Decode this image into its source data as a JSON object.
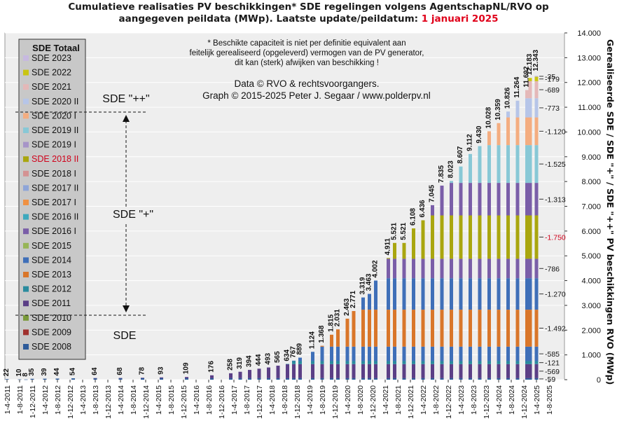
{
  "header": {
    "title_line1": "Cumulatieve realisaties PV beschikkingen*  SDE regelingen volgens AgentschapNL/RVO  op",
    "title_line2": "aangegeven peildata (MWp). Laatste update/peildatum: ",
    "title_date": "1 januari 2025"
  },
  "notes": {
    "disclaimer": [
      "* Beschikte capaciteit is niet per definitie equivalent aan",
      "feitelijk gerealiseerd (opgeleverd) vermogen van de PV generator,",
      "dit kan (sterk) afwijken van beschikking !"
    ],
    "data_credit": "Data © RVO & rechtsvoorgangers.",
    "graph_credit": "Graph  © 2015-2025  Peter J. Segaar / www.polderpv.nl"
  },
  "annotations": {
    "sde_pp": "SDE \"++\"",
    "sde_p": "SDE \"+\"",
    "sde": "SDE"
  },
  "colors": {
    "plot_bg": "#eeeeee",
    "legend_bg": "#c8c8c8",
    "highlight_red": "#d0021b"
  },
  "chart_data": {
    "type": "bar",
    "stacked": true,
    "ylabel_right": "Gerealiseerde SDE / SDE \"+\" / SDE \"++\" PV beschikkingen RVO (MWp)",
    "ylim": [
      0,
      14000
    ],
    "y_ticks": [
      "0",
      "1.000",
      "2.000",
      "3.000",
      "4.000",
      "5.000",
      "6.000",
      "7.000",
      "8.000",
      "9.000",
      "10.000",
      "11.000",
      "12.000",
      "13.000",
      "14.000"
    ],
    "grid": true,
    "legend_position": "left",
    "legend_title": "SDE Totaal",
    "x_tick_labels": [
      "1-4-2011",
      "1-8-2011",
      "1-12-2011",
      "1-4-2012",
      "1-8-2012",
      "1-12-2012",
      "1-4-2013",
      "1-8-2013",
      "1-12-2013",
      "1-4-2014",
      "1-8-2014",
      "1-12-2014",
      "1-4-2015",
      "1-8-2015",
      "1-12-2015",
      "1-4-2016",
      "1-8-2016",
      "1-12-2016",
      "1-4-2017",
      "1-8-2017",
      "1-12-2017",
      "1-4-2018",
      "1-8-2018",
      "1-12-2018",
      "1-4-2019",
      "1-8-2019",
      "1-12-2019",
      "1-4-2020",
      "1-8-2020",
      "1-12-2020",
      "1-4-2021",
      "1-8-2021",
      "1-12-2021",
      "1-4-2022",
      "1-8-2022",
      "1-12-2022",
      "1-4-2023",
      "1-8-2023",
      "1-12-2023",
      "1-4-2024",
      "1-8-2024",
      "1-12-2024",
      "1-4-2025",
      "1-8-2025"
    ],
    "series": [
      {
        "name": "SDE 2008",
        "color": "#2e5b9a"
      },
      {
        "name": "SDE 2009",
        "color": "#a0312e"
      },
      {
        "name": "SDE 2010",
        "color": "#7a9a3a"
      },
      {
        "name": "SDE 2011",
        "color": "#5b3f86"
      },
      {
        "name": "SDE 2012",
        "color": "#2a8b9e"
      },
      {
        "name": "SDE 2013",
        "color": "#d9762a"
      },
      {
        "name": "SDE 2014",
        "color": "#3f6fb8"
      },
      {
        "name": "SDE 2015",
        "color": "#97b557"
      },
      {
        "name": "SDE 2016 I",
        "color": "#7a5ea8"
      },
      {
        "name": "SDE 2016 II",
        "color": "#3ea9bd"
      },
      {
        "name": "SDE 2017 I",
        "color": "#ef9142"
      },
      {
        "name": "SDE 2017 II",
        "color": "#8ea5d8"
      },
      {
        "name": "SDE 2018 I",
        "color": "#d49292"
      },
      {
        "name": "SDE 2018 II",
        "color": "#a9a60f",
        "label_color": "#d0021b"
      },
      {
        "name": "SDE 2019 I",
        "color": "#a795c8"
      },
      {
        "name": "SDE 2019 II",
        "color": "#88c8d6"
      },
      {
        "name": "SDE 2020 I",
        "color": "#f4ad80"
      },
      {
        "name": "SDE 2020 II",
        "color": "#b6c5e8"
      },
      {
        "name": "SDE 2021",
        "color": "#e4b8b8"
      },
      {
        "name": "SDE 2022",
        "color": "#c9c512"
      },
      {
        "name": "SDE 2023",
        "color": "#c7b9e0"
      }
    ],
    "totals": [
      {
        "date": "2011-04-01",
        "label": "22",
        "value": 22
      },
      {
        "date": "2011-08-01",
        "label": "10",
        "value": 10
      },
      {
        "date": "2011-10-01",
        "label": "8",
        "value": 8
      },
      {
        "date": "2011-12-01",
        "label": "35",
        "value": 35
      },
      {
        "date": "2012-04-01",
        "label": "39",
        "value": 39
      },
      {
        "date": "2012-08-01",
        "label": "44",
        "value": 44
      },
      {
        "date": "2013-01-01",
        "label": "54",
        "value": 54
      },
      {
        "date": "2013-08-01",
        "label": "64",
        "value": 64
      },
      {
        "date": "2014-04-01",
        "label": "68",
        "value": 68
      },
      {
        "date": "2014-11-01",
        "label": "78",
        "value": 78
      },
      {
        "date": "2015-05-01",
        "label": "93",
        "value": 93
      },
      {
        "date": "2016-01-01",
        "label": "109",
        "value": 109
      },
      {
        "date": "2016-09-01",
        "label": "176",
        "value": 176
      },
      {
        "date": "2017-03-01",
        "label": "258",
        "value": 258
      },
      {
        "date": "2017-06-01",
        "label": "319",
        "value": 319
      },
      {
        "date": "2017-09-01",
        "label": "394",
        "value": 394
      },
      {
        "date": "2017-12-01",
        "label": "444",
        "value": 444
      },
      {
        "date": "2018-03-01",
        "label": "493",
        "value": 493
      },
      {
        "date": "2018-06-01",
        "label": "565",
        "value": 565
      },
      {
        "date": "2018-09-01",
        "label": "634",
        "value": 634
      },
      {
        "date": "2018-11-01",
        "label": "767",
        "value": 767
      },
      {
        "date": "2019-01-01",
        "label": "889",
        "value": 889
      },
      {
        "date": "2019-05-01",
        "label": "1.124",
        "value": 1124
      },
      {
        "date": "2019-08-01",
        "label": "1.368",
        "value": 1368
      },
      {
        "date": "2019-11-01",
        "label": "1.815",
        "value": 1815
      },
      {
        "date": "2020-01-01",
        "label": "2.031",
        "value": 2031
      },
      {
        "date": "2020-04-01",
        "label": "2.463",
        "value": 2463
      },
      {
        "date": "2020-06-01",
        "label": "2.771",
        "value": 2771
      },
      {
        "date": "2020-09-01",
        "label": "3.319",
        "value": 3319
      },
      {
        "date": "2020-11-01",
        "label": "3.463",
        "value": 3463
      },
      {
        "date": "2021-01-01",
        "label": "4.002",
        "value": 4002
      },
      {
        "date": "2021-05-01",
        "label": "4.911",
        "value": 4911
      },
      {
        "date": "2021-07-01",
        "label": "5.521",
        "value": 5521
      },
      {
        "date": "2021-10-01",
        "label": "5.521",
        "value": 5521
      },
      {
        "date": "2022-01-01",
        "label": "6.108",
        "value": 6108
      },
      {
        "date": "2022-04-01",
        "label": "6.436",
        "value": 6436
      },
      {
        "date": "2022-07-01",
        "label": "7.045",
        "value": 7045
      },
      {
        "date": "2022-10-01",
        "label": "7.835",
        "value": 7835
      },
      {
        "date": "2023-01-01",
        "label": "8.023",
        "value": 8023
      },
      {
        "date": "2023-04-01",
        "label": "8.607",
        "value": 8607
      },
      {
        "date": "2023-07-01",
        "label": "9.112",
        "value": 9112
      },
      {
        "date": "2023-10-01",
        "label": "9.430",
        "value": 9430
      },
      {
        "date": "2024-01-01",
        "label": "10.028",
        "value": 10028
      },
      {
        "date": "2024-04-01",
        "label": "10.359",
        "value": 10359
      },
      {
        "date": "2024-07-01",
        "label": "10.826",
        "value": 10826
      },
      {
        "date": "2024-10-01",
        "label": "11.264",
        "value": 11264
      },
      {
        "date": "2025-01-01",
        "label": "11.692",
        "value": 11692
      },
      {
        "date": "2025-02-01",
        "label": "12.183",
        "value": 12183
      },
      {
        "date": "2025-04-01",
        "label": "12.343",
        "value": 12343
      }
    ],
    "final_breakdown": [
      {
        "label": "59",
        "value": 59
      },
      {
        "label": "569",
        "value": 569
      },
      {
        "label": "121",
        "value": 121
      },
      {
        "label": "585",
        "value": 585
      },
      {
        "label": "1.492",
        "value": 1492
      },
      {
        "label": "1.270",
        "value": 1270
      },
      {
        "label": "786",
        "value": 786
      },
      {
        "label": "1.750",
        "value": 1750,
        "color": "#d0021b"
      },
      {
        "label": "1.313",
        "value": 1313
      },
      {
        "label": "1.525",
        "value": 1525
      },
      {
        "label": "1.120",
        "value": 1120
      },
      {
        "label": "773",
        "value": 773
      },
      {
        "label": "689",
        "value": 689
      },
      {
        "label": "179",
        "value": 179
      },
      {
        "label": "35",
        "value": 35
      }
    ]
  }
}
